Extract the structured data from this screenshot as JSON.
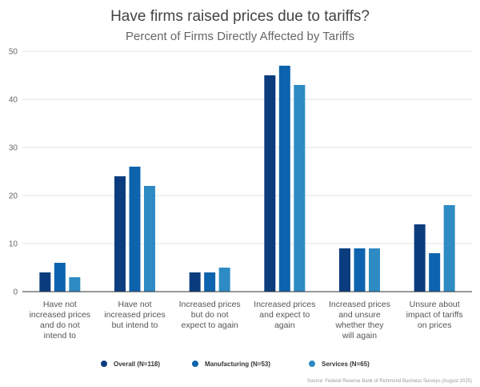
{
  "chart_data": {
    "type": "bar",
    "title": "Have firms raised prices due to tariffs?",
    "subtitle": "Percent of Firms Directly Affected by Tariffs",
    "xlabel": "",
    "ylabel": "",
    "ylim": [
      0,
      50
    ],
    "yticks": [
      0,
      10,
      20,
      30,
      40,
      50
    ],
    "grid": true,
    "legend_position": "bottom",
    "categories": [
      [
        "Have not",
        "increased prices",
        "and do not",
        "intend to"
      ],
      [
        "Have not",
        "increased prices",
        "but intend to"
      ],
      [
        "Increased prices",
        "but do not",
        "expect to again"
      ],
      [
        "Increased prices",
        "and expect to",
        "again"
      ],
      [
        "Increased prices",
        "and unsure",
        "whether they",
        "will again"
      ],
      [
        "Unsure about",
        "impact of tariffs",
        "on prices"
      ]
    ],
    "series": [
      {
        "name": "Overall (N=118)",
        "color": "#0b3d7e",
        "values": [
          4,
          24,
          4,
          45,
          9,
          14
        ]
      },
      {
        "name": "Manufacturing (N=53)",
        "color": "#0d63ad",
        "values": [
          6,
          26,
          4,
          47,
          9,
          8
        ]
      },
      {
        "name": "Services (N=65)",
        "color": "#2e8bc4",
        "values": [
          3,
          22,
          5,
          43,
          9,
          18
        ]
      }
    ],
    "source": "Source: Federal Reserve Bank of Richmond Business Surveys (August 2025)"
  }
}
